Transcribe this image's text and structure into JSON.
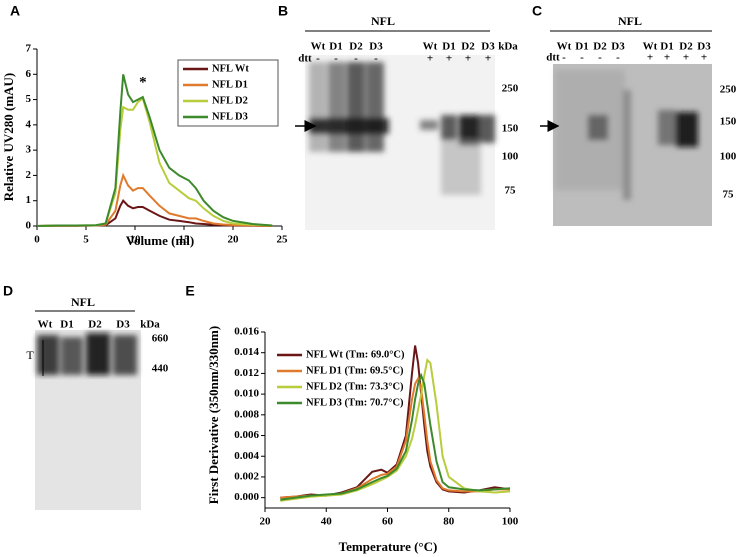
{
  "chart_data": [
    {
      "type": "line",
      "panel_label": "A",
      "annotation": "*",
      "x_label": "Volume (ml)",
      "y_label": "Relative UV280 (mAU)",
      "xlim": [
        0,
        25
      ],
      "xticks": [
        0,
        5,
        10,
        15,
        20,
        25
      ],
      "ylim": [
        0,
        7
      ],
      "yticks": [
        0,
        1,
        2,
        3,
        4,
        5,
        6,
        7
      ],
      "legend": "top-right",
      "x": [
        0,
        2,
        4,
        6,
        7,
        8,
        8.5,
        8.8,
        9.3,
        9.8,
        10.3,
        10.8,
        11.5,
        12.5,
        13.5,
        14.5,
        15.5,
        16.2,
        17,
        18,
        19,
        20,
        22,
        24
      ],
      "series": [
        {
          "name": "NFL Wt",
          "color": "#6b1616",
          "values": [
            0,
            0.01,
            0.01,
            0.02,
            0.03,
            0.3,
            0.8,
            1.0,
            0.8,
            0.7,
            0.75,
            0.75,
            0.6,
            0.4,
            0.25,
            0.2,
            0.15,
            0.1,
            0.08,
            0.05,
            0.03,
            0.02,
            0.01,
            0
          ]
        },
        {
          "name": "NFL D1",
          "color": "#e07a2c",
          "values": [
            0,
            0.01,
            0.01,
            0.02,
            0.05,
            0.6,
            1.6,
            2.0,
            1.6,
            1.4,
            1.5,
            1.5,
            1.2,
            0.8,
            0.5,
            0.4,
            0.3,
            0.3,
            0.2,
            0.1,
            0.06,
            0.04,
            0.02,
            0
          ]
        },
        {
          "name": "NFL D2",
          "color": "#b8cc3c",
          "values": [
            0,
            0.02,
            0.02,
            0.03,
            0.1,
            1.3,
            3.8,
            4.7,
            4.6,
            4.6,
            4.9,
            5.05,
            4.1,
            2.5,
            1.7,
            1.4,
            1.1,
            1.0,
            0.7,
            0.4,
            0.2,
            0.1,
            0.05,
            0.02
          ]
        },
        {
          "name": "NFL D3",
          "color": "#3d8a2c",
          "values": [
            0,
            0.02,
            0.02,
            0.03,
            0.1,
            1.5,
            4.5,
            6.0,
            5.2,
            4.9,
            5.0,
            5.1,
            4.3,
            3.0,
            2.3,
            2.0,
            1.8,
            1.5,
            1.0,
            0.6,
            0.35,
            0.2,
            0.08,
            0.02
          ]
        }
      ]
    },
    {
      "type": "line",
      "panel_label": "E",
      "x_label": "Temperature (°C)",
      "y_label": "First Derivative (350nm/330nm)",
      "xlim": [
        20,
        100
      ],
      "xticks": [
        20,
        40,
        60,
        80,
        100
      ],
      "ylim": [
        -0.001,
        0.016
      ],
      "yticks": [
        {
          "value": 0,
          "label": "0.000"
        },
        {
          "value": 0.002,
          "label": "0.002"
        },
        {
          "value": 0.004,
          "label": "0.004"
        },
        {
          "value": 0.006,
          "label": "0.006"
        },
        {
          "value": 0.008,
          "label": "0.008"
        },
        {
          "value": 0.01,
          "label": "0.010"
        },
        {
          "value": 0.012,
          "label": "0.012"
        },
        {
          "value": 0.014,
          "label": "0.014"
        },
        {
          "value": 0.016,
          "label": "0.016"
        }
      ],
      "legend": "top-left",
      "x": [
        25,
        30,
        35,
        40,
        45,
        50,
        55,
        58,
        60,
        63,
        66,
        68,
        69,
        70,
        71,
        72,
        73,
        74,
        76,
        78,
        80,
        85,
        90,
        95,
        100
      ],
      "series": [
        {
          "name": "NFL Wt (Tm: 69.0°C)",
          "color": "#6b1616",
          "values": [
            0,
            0.0001,
            0.0003,
            0.0002,
            0.0005,
            0.001,
            0.0025,
            0.0027,
            0.0024,
            0.0032,
            0.006,
            0.012,
            0.0147,
            0.013,
            0.01,
            0.007,
            0.0045,
            0.003,
            0.0015,
            0.0008,
            0.0006,
            0.0005,
            0.0007,
            0.001,
            0.0008
          ]
        },
        {
          "name": "NFL D1 (Tm: 69.5°C)",
          "color": "#e07a2c",
          "values": [
            0,
            0.0001,
            0.0002,
            0.0002,
            0.0004,
            0.0009,
            0.0018,
            0.0022,
            0.0023,
            0.003,
            0.0055,
            0.0095,
            0.011,
            0.0115,
            0.0105,
            0.008,
            0.0055,
            0.0035,
            0.0017,
            0.0009,
            0.0007,
            0.0006,
            0.0006,
            0.0008,
            0.0008
          ]
        },
        {
          "name": "NFL D2 (Tm: 73.3°C)",
          "color": "#b8cc3c",
          "values": [
            -0.0003,
            -0.0001,
            0.0001,
            0.0002,
            0.0003,
            0.0007,
            0.0013,
            0.0017,
            0.002,
            0.0026,
            0.004,
            0.0057,
            0.007,
            0.0085,
            0.01,
            0.0118,
            0.0133,
            0.013,
            0.009,
            0.004,
            0.002,
            0.0009,
            0.0006,
            0.0005,
            0.0006
          ]
        },
        {
          "name": "NFL D3 (Tm: 70.7°C)",
          "color": "#3d8a2c",
          "values": [
            -0.0002,
            0,
            0.0002,
            0.0003,
            0.0004,
            0.0008,
            0.0015,
            0.0019,
            0.0021,
            0.0028,
            0.0045,
            0.0075,
            0.0095,
            0.011,
            0.0118,
            0.011,
            0.009,
            0.007,
            0.0035,
            0.0015,
            0.001,
            0.0008,
            0.0007,
            0.0008,
            0.0009
          ]
        }
      ]
    }
  ],
  "gels": [
    {
      "panel_label": "B",
      "group": "NFL",
      "lanes": [
        "Wt",
        "D1",
        "D2",
        "D3",
        "Wt",
        "D1",
        "D2",
        "D3"
      ],
      "unit": "kDa",
      "dtt_label": "dtt",
      "dtt": [
        "-",
        "-",
        "-",
        "-",
        "+",
        "+",
        "+",
        "+"
      ],
      "markers": [
        "250",
        "150",
        "100",
        "75"
      ]
    },
    {
      "panel_label": "C",
      "group": "NFL",
      "lanes": [
        "Wt",
        "D1",
        "D2",
        "D3",
        "Wt",
        "D1",
        "D2",
        "D3"
      ],
      "dtt_label": "dtt",
      "dtt": [
        "-",
        "-",
        "-",
        "-",
        "+",
        "+",
        "+",
        "+"
      ],
      "markers": [
        "250",
        "150",
        "100",
        "75"
      ]
    },
    {
      "panel_label": "D",
      "group": "NFL",
      "lanes": [
        "Wt",
        "D1",
        "D2",
        "D3"
      ],
      "unit": "kDa",
      "markers": [
        "660",
        "440"
      ],
      "side_label": "T"
    }
  ]
}
